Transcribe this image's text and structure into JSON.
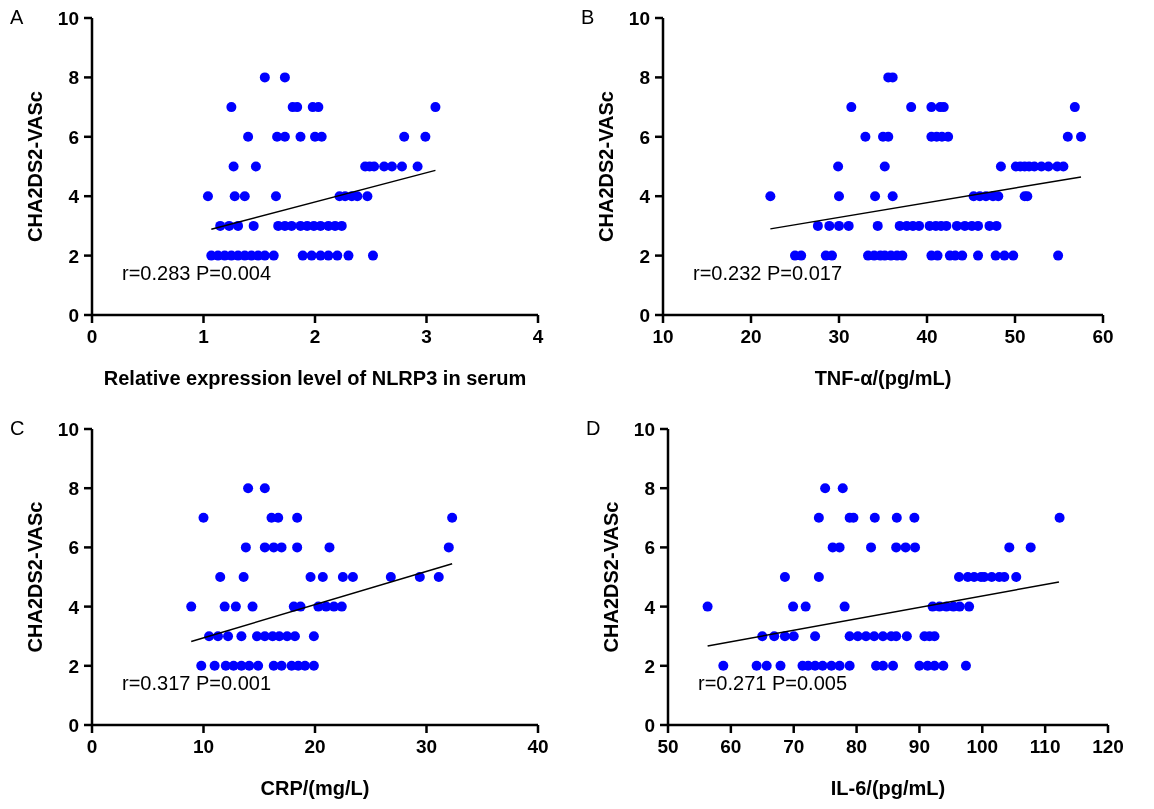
{
  "chart_data": [
    {
      "type": "scatter",
      "title": "A",
      "xlabel": "Relative expression level of NLRP3 in serum",
      "ylabel": "CHA2DS2-VASc",
      "xlim": [
        0,
        4
      ],
      "xticks": [
        0,
        1,
        2,
        3,
        4
      ],
      "ylim": [
        0,
        10
      ],
      "yticks": [
        0,
        2,
        4,
        6,
        8,
        10
      ],
      "annotations": [
        "r=0.283 P=0.004"
      ],
      "series": [
        {
          "type": "scatter",
          "color": "#0000ff",
          "x": [
            1.55,
            1.73,
            1.25,
            1.8,
            1.84,
            1.98,
            2.03,
            3.08,
            1.4,
            1.66,
            1.73,
            1.87,
            2.0,
            2.06,
            2.8,
            2.99,
            1.27,
            1.47,
            2.45,
            2.49,
            2.53,
            2.62,
            2.69,
            2.78,
            2.92,
            1.04,
            1.28,
            1.37,
            1.65,
            2.22,
            2.27,
            2.33,
            2.38,
            2.47,
            1.15,
            1.23,
            1.31,
            1.45,
            1.67,
            1.73,
            1.79,
            1.87,
            1.93,
            1.99,
            2.05,
            2.12,
            2.18,
            2.24,
            1.07,
            1.13,
            1.19,
            1.25,
            1.31,
            1.37,
            1.43,
            1.49,
            1.55,
            1.63,
            1.89,
            1.97,
            2.05,
            2.12,
            2.2,
            2.3,
            2.52
          ],
          "values": [
            8,
            8,
            7,
            7,
            7,
            7,
            7,
            7,
            6,
            6,
            6,
            6,
            6,
            6,
            6,
            6,
            5,
            5,
            5,
            5,
            5,
            5,
            5,
            5,
            5,
            4,
            4,
            4,
            4,
            4,
            4,
            4,
            4,
            4,
            3,
            3,
            3,
            3,
            3,
            3,
            3,
            3,
            3,
            3,
            3,
            3,
            3,
            3,
            2,
            2,
            2,
            2,
            2,
            2,
            2,
            2,
            2,
            2,
            2,
            2,
            2,
            2,
            2,
            2,
            2
          ]
        },
        {
          "type": "line",
          "color": "#000000",
          "x": [
            1.07,
            3.08
          ],
          "values": [
            2.89,
            4.87
          ]
        }
      ]
    },
    {
      "type": "scatter",
      "title": "B",
      "xlabel": "TNF-α/(pg/mL)",
      "ylabel": "CHA2DS2-VASc",
      "xlim": [
        10,
        60
      ],
      "xticks": [
        10,
        20,
        30,
        40,
        50,
        60
      ],
      "ylim": [
        0,
        10
      ],
      "yticks": [
        0,
        2,
        4,
        6,
        8,
        10
      ],
      "annotations": [
        "r=0.232 P=0.017"
      ],
      "series": [
        {
          "type": "scatter",
          "color": "#0000ff",
          "x": [
            35.6,
            36.1,
            31.4,
            38.2,
            40.5,
            41.5,
            41.9,
            56.8,
            33.0,
            35.0,
            35.6,
            40.5,
            41.1,
            41.7,
            42.4,
            56.0,
            57.5,
            29.9,
            35.2,
            48.4,
            50.1,
            50.6,
            51.1,
            51.6,
            52.2,
            53.0,
            53.8,
            54.8,
            55.5,
            22.2,
            30.0,
            34.1,
            36.1,
            45.3,
            46.0,
            46.7,
            47.5,
            48.1,
            51.1,
            51.4,
            27.6,
            28.9,
            30.0,
            31.1,
            34.4,
            36.9,
            37.7,
            38.4,
            39.1,
            40.3,
            41.0,
            41.6,
            42.2,
            43.4,
            44.3,
            45.1,
            45.8,
            47.1,
            47.9,
            25.0,
            25.7,
            28.5,
            29.2,
            33.3,
            34.0,
            34.7,
            35.2,
            35.9,
            36.6,
            37.2,
            40.5,
            41.2,
            42.6,
            43.2,
            44.0,
            45.8,
            47.8,
            48.8,
            49.8,
            54.9
          ],
          "values": [
            8,
            8,
            7,
            7,
            7,
            7,
            7,
            7,
            6,
            6,
            6,
            6,
            6,
            6,
            6,
            6,
            6,
            5,
            5,
            5,
            5,
            5,
            5,
            5,
            5,
            5,
            5,
            5,
            5,
            4,
            4,
            4,
            4,
            4,
            4,
            4,
            4,
            4,
            4,
            4,
            3,
            3,
            3,
            3,
            3,
            3,
            3,
            3,
            3,
            3,
            3,
            3,
            3,
            3,
            3,
            3,
            3,
            3,
            3,
            2,
            2,
            2,
            2,
            2,
            2,
            2,
            2,
            2,
            2,
            2,
            2,
            2,
            2,
            2,
            2,
            2,
            2,
            2,
            2,
            2
          ]
        },
        {
          "type": "line",
          "color": "#000000",
          "x": [
            22.2,
            57.5
          ],
          "values": [
            2.9,
            4.65
          ]
        }
      ]
    },
    {
      "type": "scatter",
      "title": "C",
      "xlabel": "CRP/(mg/L)",
      "ylabel": "CHA2DS2-VASc",
      "xlim": [
        0,
        40
      ],
      "xticks": [
        0,
        10,
        20,
        30,
        40
      ],
      "ylim": [
        0,
        10
      ],
      "yticks": [
        0,
        2,
        4,
        6,
        8,
        10
      ],
      "annotations": [
        "r=0.317 P=0.001"
      ],
      "series": [
        {
          "type": "scatter",
          "color": "#0000ff",
          "x": [
            14.0,
            15.5,
            10.0,
            16.1,
            16.7,
            18.4,
            32.3,
            13.8,
            15.5,
            16.3,
            17.0,
            18.4,
            21.3,
            32.0,
            11.5,
            13.6,
            19.6,
            20.7,
            22.5,
            23.4,
            26.8,
            29.4,
            31.1,
            8.9,
            11.9,
            12.9,
            14.4,
            18.1,
            18.7,
            20.3,
            21.0,
            21.7,
            22.4,
            10.5,
            11.3,
            12.2,
            13.4,
            14.8,
            15.5,
            16.2,
            16.8,
            17.5,
            18.2,
            19.9,
            9.8,
            11.0,
            12.0,
            12.7,
            13.4,
            14.1,
            14.9,
            16.3,
            17.0,
            17.9,
            18.5,
            19.1,
            19.9
          ],
          "values": [
            8,
            8,
            7,
            7,
            7,
            7,
            7,
            6,
            6,
            6,
            6,
            6,
            6,
            6,
            5,
            5,
            5,
            5,
            5,
            5,
            5,
            5,
            5,
            4,
            4,
            4,
            4,
            4,
            4,
            4,
            4,
            4,
            4,
            3,
            3,
            3,
            3,
            3,
            3,
            3,
            3,
            3,
            3,
            3,
            2,
            2,
            2,
            2,
            2,
            2,
            2,
            2,
            2,
            2,
            2,
            2,
            2
          ]
        },
        {
          "type": "line",
          "color": "#000000",
          "x": [
            8.9,
            32.3
          ],
          "values": [
            2.82,
            5.45
          ]
        }
      ]
    },
    {
      "type": "scatter",
      "title": "D",
      "xlabel": "IL-6/(pg/mL)",
      "ylabel": "CHA2DS2-VASc",
      "xlim": [
        50,
        120
      ],
      "xticks": [
        50,
        60,
        70,
        80,
        90,
        100,
        110,
        120
      ],
      "ylim": [
        0,
        10
      ],
      "yticks": [
        0,
        2,
        4,
        6,
        8,
        10
      ],
      "annotations": [
        "r=0.271 P=0.005"
      ],
      "series": [
        {
          "type": "scatter",
          "color": "#0000ff",
          "x": [
            75.0,
            77.8,
            74.0,
            78.9,
            79.5,
            82.9,
            86.4,
            89.2,
            112.3,
            76.2,
            77.3,
            82.3,
            86.3,
            87.8,
            89.3,
            104.3,
            107.7,
            68.6,
            74.0,
            96.3,
            97.7,
            98.7,
            99.8,
            100.3,
            101.5,
            102.7,
            103.5,
            105.4,
            56.3,
            69.9,
            71.9,
            78.1,
            92.1,
            93.2,
            94.3,
            95.4,
            96.4,
            97.9,
            65.0,
            66.9,
            68.6,
            70.0,
            73.4,
            78.9,
            80.2,
            81.5,
            82.8,
            84.2,
            85.5,
            86.3,
            88.0,
            90.8,
            91.6,
            92.4,
            58.8,
            64.1,
            65.7,
            67.9,
            71.4,
            72.3,
            73.4,
            74.6,
            76.0,
            77.3,
            78.9,
            83.1,
            84.2,
            85.8,
            90.0,
            91.3,
            92.4,
            93.8,
            97.4
          ],
          "values": [
            8,
            8,
            7,
            7,
            7,
            7,
            7,
            7,
            7,
            6,
            6,
            6,
            6,
            6,
            6,
            6,
            6,
            5,
            5,
            5,
            5,
            5,
            5,
            5,
            5,
            5,
            5,
            5,
            4,
            4,
            4,
            4,
            4,
            4,
            4,
            4,
            4,
            4,
            3,
            3,
            3,
            3,
            3,
            3,
            3,
            3,
            3,
            3,
            3,
            3,
            3,
            3,
            3,
            3,
            2,
            2,
            2,
            2,
            2,
            2,
            2,
            2,
            2,
            2,
            2,
            2,
            2,
            2,
            2,
            2,
            2,
            2,
            2
          ]
        },
        {
          "type": "line",
          "color": "#000000",
          "x": [
            56.3,
            112.2
          ],
          "values": [
            2.67,
            4.83
          ]
        }
      ]
    }
  ]
}
